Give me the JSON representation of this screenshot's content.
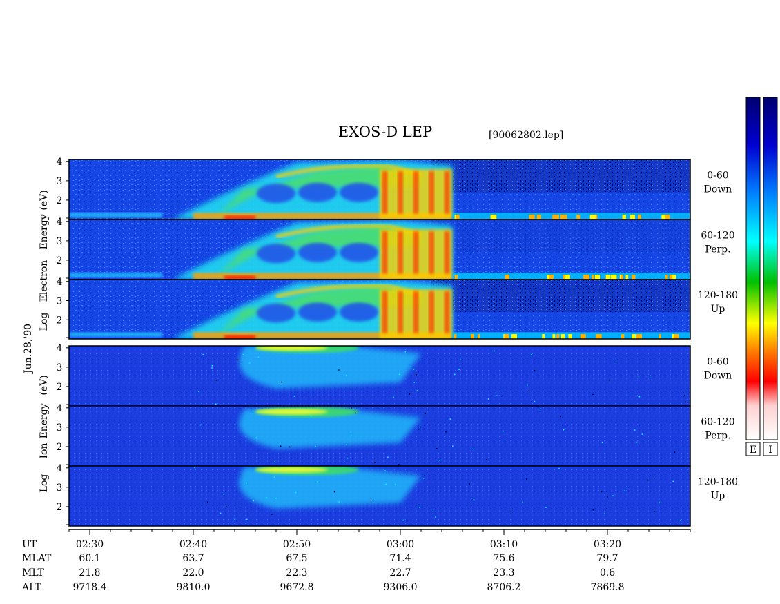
{
  "chart_data": {
    "type": "heatmap",
    "title": "EXOS-D LEP",
    "file_label": "[90062802.lep]",
    "date_label": "Jun.28,'90",
    "time_range": [
      "02:28",
      "03:28"
    ],
    "electron_axis_label": {
      "log": "Log",
      "species": "Electron",
      "energy": "Energy",
      "unit": "(eV)"
    },
    "ion_axis_label": {
      "log": "Log",
      "species": "Ion",
      "energy": "Energy",
      "unit": "(eV)"
    },
    "yticks": [
      "4",
      "3",
      "2"
    ],
    "panels": [
      {
        "species": "E",
        "pitch": "0-60",
        "dir": "Down",
        "ymin": 1,
        "ymax": 4.1
      },
      {
        "species": "E",
        "pitch": "60-120",
        "dir": "Perp.",
        "ymin": 1,
        "ymax": 4.1
      },
      {
        "species": "E",
        "pitch": "120-180",
        "dir": "Up",
        "ymin": 1,
        "ymax": 4.1
      },
      {
        "species": "I",
        "pitch": "0-60",
        "dir": "Down",
        "ymin": 1,
        "ymax": 4.1
      },
      {
        "species": "I",
        "pitch": "60-120",
        "dir": "Perp.",
        "ymin": 1,
        "ymax": 4.1
      },
      {
        "species": "I",
        "pitch": "120-180",
        "dir": "Up",
        "ymin": 1,
        "ymax": 4.1
      }
    ],
    "x_ticks": [
      {
        "t": "02:30",
        "mlat": "60.1",
        "mlt": "21.8",
        "alt": "9718.4"
      },
      {
        "t": "02:40",
        "mlat": "63.7",
        "mlt": "22.0",
        "alt": "9810.0"
      },
      {
        "t": "02:50",
        "mlat": "67.5",
        "mlt": "22.3",
        "alt": "9672.8"
      },
      {
        "t": "03:00",
        "mlat": "71.4",
        "mlt": "22.7",
        "alt": "9306.0"
      },
      {
        "t": "03:10",
        "mlat": "75.6",
        "mlt": "23.3",
        "alt": "8706.2"
      },
      {
        "t": "03:20",
        "mlat": "79.7",
        "mlt": "0.6",
        "alt": "7869.8"
      }
    ],
    "row_labels": {
      "ut": "UT",
      "mlat": "MLAT",
      "mlt": "MLT",
      "alt": "ALT"
    },
    "colorbars": [
      {
        "label": "E"
      },
      {
        "label": "I"
      }
    ],
    "colorscale": [
      "#ffffff",
      "#ff0000",
      "#ff8000",
      "#ffff00",
      "#00d000",
      "#00ffff",
      "#0080ff",
      "#0000c0",
      "#000060"
    ]
  }
}
